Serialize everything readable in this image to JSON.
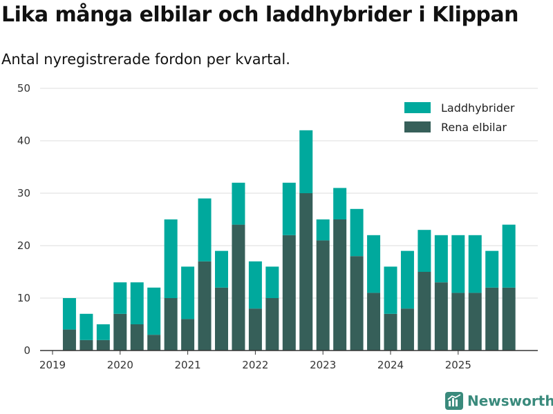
{
  "title": "Lika många elbilar och laddhybrider i Klippan",
  "subtitle": "Antal nyregistrerade fordon per kvartal.",
  "brand": "Newsworthy",
  "colors": {
    "laddhybrider": "#00a99d",
    "rena_elbilar": "#365f59",
    "grid": "#dddddd",
    "axis": "#333333"
  },
  "chart_data": {
    "type": "bar",
    "stacked": true,
    "title": "Lika många elbilar och laddhybrider i Klippan",
    "subtitle": "Antal nyregistrerade fordon per kvartal.",
    "xlabel": "",
    "ylabel": "",
    "ylim": [
      0,
      50
    ],
    "yticks": [
      0,
      10,
      20,
      30,
      40,
      50
    ],
    "grid": true,
    "legend_position": "top-right",
    "categories": [
      "2019 Q2",
      "2019 Q3",
      "2019 Q4",
      "2020 Q1",
      "2020 Q2",
      "2020 Q3",
      "2020 Q4",
      "2021 Q1",
      "2021 Q2",
      "2021 Q3",
      "2021 Q4",
      "2022 Q1",
      "2022 Q2",
      "2022 Q3",
      "2022 Q4",
      "2023 Q1",
      "2023 Q2",
      "2023 Q3",
      "2023 Q4",
      "2024 Q1",
      "2024 Q2",
      "2024 Q3",
      "2024 Q4",
      "2025 Q1",
      "2025 Q2",
      "2025 Q3",
      "2025 Q4"
    ],
    "x_tick_labels": [
      {
        "label": "2019",
        "quarter_pos": 0
      },
      {
        "label": "2020",
        "quarter_pos": 4
      },
      {
        "label": "2021",
        "quarter_pos": 8
      },
      {
        "label": "2022",
        "quarter_pos": 12
      },
      {
        "label": "2023",
        "quarter_pos": 16
      },
      {
        "label": "2024",
        "quarter_pos": 20
      },
      {
        "label": "2025",
        "quarter_pos": 24
      }
    ],
    "series": [
      {
        "name": "Rena elbilar",
        "color": "#365f59",
        "values": [
          4,
          2,
          2,
          7,
          5,
          3,
          10,
          6,
          17,
          12,
          24,
          8,
          10,
          22,
          30,
          21,
          25,
          18,
          11,
          7,
          8,
          15,
          13,
          11,
          11,
          12,
          12
        ]
      },
      {
        "name": "Laddhybrider",
        "color": "#00a99d",
        "values": [
          6,
          5,
          3,
          6,
          8,
          9,
          15,
          10,
          12,
          7,
          8,
          9,
          6,
          10,
          12,
          4,
          6,
          9,
          11,
          9,
          11,
          8,
          9,
          11,
          11,
          7,
          12
        ]
      }
    ],
    "legend": [
      "Laddhybrider",
      "Rena elbilar"
    ]
  }
}
